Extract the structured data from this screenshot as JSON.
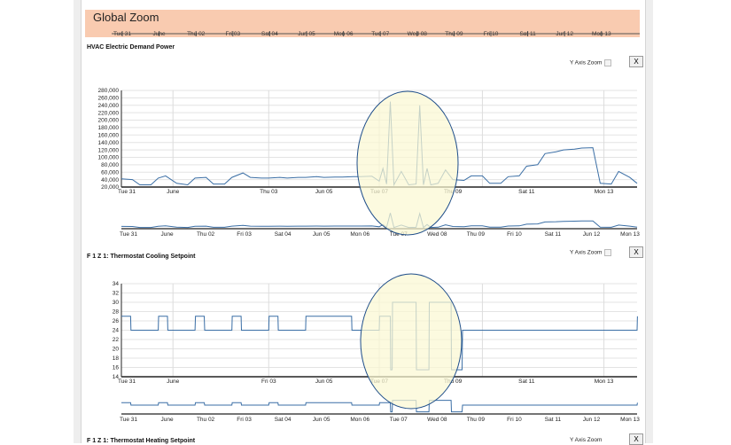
{
  "global_zoom": {
    "title": "Global Zoom",
    "ticks": [
      "Tue 31",
      "June",
      "Thu 02",
      "Fri 03",
      "Sat 04",
      "Jun 05",
      "Mon 06",
      "Tue 07",
      "Wed 08",
      "Thu 09",
      "Fri 10",
      "Sat 11",
      "Jun 12",
      "Mon 13"
    ]
  },
  "panels": [
    {
      "title": "HVAC Electric Demand Power",
      "y_zoom_label": "Y Axis Zoom",
      "close_label": "X"
    },
    {
      "title": "F 1 Z 1: Thermostat Cooling Setpoint",
      "y_zoom_label": "Y Axis Zoom",
      "close_label": "X"
    },
    {
      "title": "F 1 Z 1: Thermostat Heating Setpoint",
      "y_zoom_label": "Y Axis Zoom",
      "close_label": "X"
    }
  ],
  "colors": {
    "series": "#3a6ea5",
    "highlight_fill": "#fbf8d2",
    "highlight_stroke": "#1f4e8a",
    "global_bg": "#f9cbb0"
  },
  "chart_data": [
    {
      "type": "line",
      "title": "HVAC Electric Demand Power",
      "x_ticks": [
        "Tue 31",
        "June",
        "Thu 03",
        "Jun 05",
        "Tue 07",
        "Thu 09",
        "Sat 11",
        "Mon 13"
      ],
      "overview_ticks": [
        "Tue 31",
        "June",
        "Thu 02",
        "Fri 03",
        "Sat 04",
        "Jun 05",
        "Mon 06",
        "Tue 07",
        "Wed 08",
        "Thu 09",
        "Fri 10",
        "Sat 11",
        "Jun 12",
        "Mon 13"
      ],
      "ylim": [
        20000,
        280000
      ],
      "y_ticks": [
        "280,000",
        "260,000",
        "240,000",
        "220,000",
        "200,000",
        "180,000",
        "160,000",
        "140,000",
        "120,000",
        "100,000",
        "80,000",
        "60,000",
        "40,000",
        "20,000"
      ],
      "y_tick_values": [
        280000,
        260000,
        240000,
        220000,
        200000,
        180000,
        160000,
        140000,
        120000,
        100000,
        80000,
        60000,
        40000,
        20000
      ],
      "x": [
        0,
        0.3,
        0.5,
        0.8,
        1,
        1.2,
        1.5,
        1.8,
        2,
        2.3,
        2.5,
        2.8,
        3,
        3.3,
        3.5,
        3.8,
        4,
        4.3,
        4.5,
        4.8,
        5,
        5.3,
        5.5,
        5.8,
        6,
        6.3,
        6.5,
        6.8,
        7,
        7.1,
        7.2,
        7.3,
        7.4,
        7.6,
        7.8,
        8,
        8.1,
        8.2,
        8.3,
        8.4,
        8.6,
        8.8,
        9,
        9.3,
        9.5,
        9.8,
        10,
        10.3,
        10.5,
        10.8,
        11,
        11.3,
        11.5,
        11.8,
        12,
        12.3,
        12.5,
        12.8,
        13,
        13.3,
        13.5,
        13.8,
        14
      ],
      "y": [
        42000,
        40000,
        26000,
        26000,
        44000,
        50000,
        30000,
        26000,
        44000,
        46000,
        28000,
        28000,
        46000,
        58000,
        46000,
        44000,
        44000,
        46000,
        44000,
        46000,
        46000,
        48000,
        46000,
        47000,
        47000,
        48000,
        48000,
        49000,
        36000,
        70000,
        28000,
        250000,
        26000,
        62000,
        26000,
        28000,
        240000,
        26000,
        70000,
        26000,
        30000,
        66000,
        40000,
        38000,
        50000,
        50000,
        30000,
        30000,
        48000,
        50000,
        76000,
        80000,
        110000,
        115000,
        120000,
        122000,
        125000,
        126000,
        30000,
        28000,
        62000,
        46000,
        30000
      ],
      "highlight": "ellipse"
    },
    {
      "type": "line",
      "title": "F 1 Z 1: Thermostat Cooling Setpoint",
      "x_ticks": [
        "Tue 31",
        "June",
        "Fri 03",
        "Jun 05",
        "Tue 07",
        "Thu 09",
        "Sat 11",
        "Mon 13"
      ],
      "overview_ticks": [
        "Tue 31",
        "June",
        "Thu 02",
        "Fri 03",
        "Sat 04",
        "Jun 05",
        "Mon 06",
        "Tue 07",
        "Wed 08",
        "Thu 09",
        "Fri 10",
        "Sat 11",
        "Jun 12",
        "Mon 13"
      ],
      "ylim": [
        14,
        34
      ],
      "y_ticks": [
        "34",
        "32",
        "30",
        "28",
        "26",
        "24",
        "22",
        "20",
        "18",
        "16",
        "14"
      ],
      "y_tick_values": [
        34,
        32,
        30,
        28,
        26,
        24,
        22,
        20,
        18,
        16,
        14
      ],
      "x": [
        0,
        0.25,
        0.26,
        1,
        1.01,
        1.25,
        1.26,
        2,
        2.01,
        2.25,
        2.26,
        3,
        3.01,
        3.25,
        3.26,
        4,
        4.01,
        4.25,
        4.26,
        5,
        5.01,
        6.25,
        6.26,
        7,
        7.01,
        7.3,
        7.31,
        7.35,
        7.36,
        8.0,
        8.01,
        8.35,
        8.36,
        8.95,
        8.96,
        9.25,
        9.26,
        10,
        10.01,
        14,
        14.01
      ],
      "y": [
        27,
        27,
        24,
        24,
        27,
        27,
        24,
        24,
        27,
        27,
        24,
        24,
        27,
        27,
        24,
        24,
        27,
        27,
        24,
        24,
        27,
        27,
        24,
        24,
        27,
        27,
        15.5,
        15.5,
        30,
        30,
        15.5,
        15.5,
        30,
        30,
        15.5,
        15.5,
        24,
        24,
        24,
        24,
        27
      ],
      "highlight": "ellipse"
    }
  ]
}
